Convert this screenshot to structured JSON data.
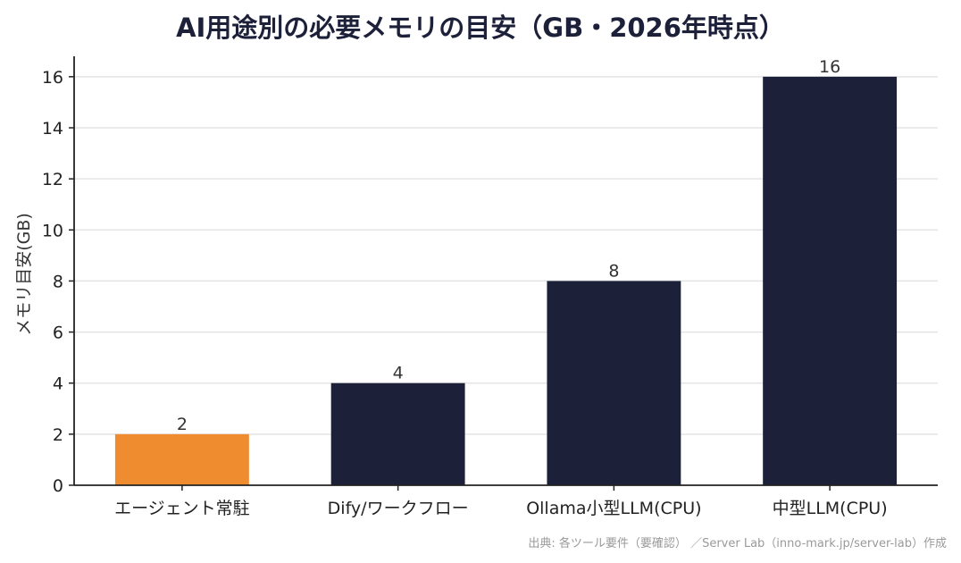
{
  "chart_data": {
    "type": "bar",
    "title": "AI用途別の必要メモリの目安（GB・2026年時点）",
    "ylabel": "メモリ目安(GB)",
    "xlabel": "",
    "categories": [
      "エージェント常駐",
      "Dify/ワークフロー",
      "Ollama小型LLM(CPU)",
      "中型LLM(CPU)"
    ],
    "values": [
      2,
      4,
      8,
      16
    ],
    "data_labels": [
      "2",
      "4",
      "8",
      "16"
    ],
    "bar_colors": [
      "#f08c30",
      "#1c2039",
      "#1c2039",
      "#1c2039"
    ],
    "ylim": [
      0,
      16.8
    ],
    "yticks": [
      0,
      2,
      4,
      6,
      8,
      10,
      12,
      14,
      16
    ],
    "grid": "horizontal",
    "legend": "none"
  },
  "source_note": "出典: 各ツール要件（要確認） ／Server Lab（inno-mark.jp/server-lab）作成"
}
